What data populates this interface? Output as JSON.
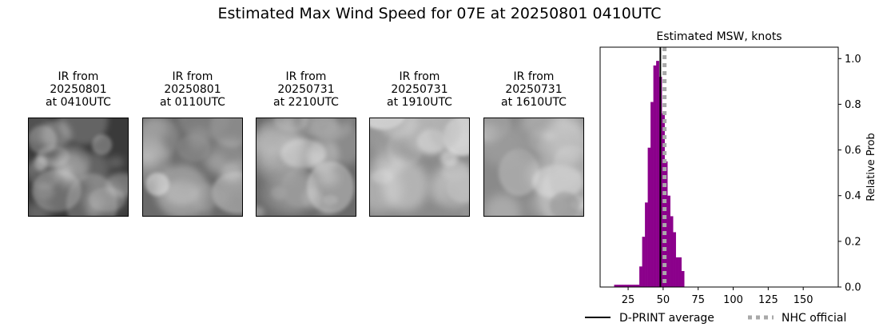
{
  "figure": {
    "suptitle": "Estimated Max Wind Speed for 07E at 20250801 0410UTC"
  },
  "ir_panels": [
    {
      "title": "IR from\n20250801\nat 0410UTC",
      "tone": "dark"
    },
    {
      "title": "IR from\n20250801\nat 0110UTC",
      "tone": "mid"
    },
    {
      "title": "IR from\n20250731\nat 2210UTC",
      "tone": "mid"
    },
    {
      "title": "IR from\n20250731\nat 1910UTC",
      "tone": "light"
    },
    {
      "title": "IR from\n20250731\nat 1610UTC",
      "tone": "light"
    }
  ],
  "chart_data": {
    "type": "bar",
    "title": "Estimated MSW, knots",
    "xlabel": "",
    "ylabel": "Relative Prob",
    "xlim": [
      5,
      175
    ],
    "ylim": [
      0,
      1.05
    ],
    "x_ticks": [
      25,
      50,
      75,
      100,
      125,
      150
    ],
    "y_ticks": [
      0.0,
      0.2,
      0.4,
      0.6,
      0.8,
      1.0
    ],
    "y_tick_labels": [
      "0.0",
      "0.2",
      "0.4",
      "0.6",
      "0.8",
      "1.0"
    ],
    "y_axis_side": "right",
    "bar_color": "#8b008b",
    "bin_width": 2,
    "bins": [
      {
        "x": 16,
        "y": 0.01
      },
      {
        "x": 18,
        "y": 0.01
      },
      {
        "x": 20,
        "y": 0.01
      },
      {
        "x": 22,
        "y": 0.01
      },
      {
        "x": 24,
        "y": 0.01
      },
      {
        "x": 26,
        "y": 0.01
      },
      {
        "x": 28,
        "y": 0.01
      },
      {
        "x": 30,
        "y": 0.01
      },
      {
        "x": 32,
        "y": 0.01
      },
      {
        "x": 34,
        "y": 0.09
      },
      {
        "x": 36,
        "y": 0.22
      },
      {
        "x": 38,
        "y": 0.37
      },
      {
        "x": 40,
        "y": 0.61
      },
      {
        "x": 42,
        "y": 0.81
      },
      {
        "x": 44,
        "y": 0.97
      },
      {
        "x": 46,
        "y": 0.99
      },
      {
        "x": 48,
        "y": 0.92
      },
      {
        "x": 50,
        "y": 0.76
      },
      {
        "x": 52,
        "y": 0.55
      },
      {
        "x": 54,
        "y": 0.4
      },
      {
        "x": 56,
        "y": 0.31
      },
      {
        "x": 58,
        "y": 0.24
      },
      {
        "x": 60,
        "y": 0.13
      },
      {
        "x": 62,
        "y": 0.13
      },
      {
        "x": 64,
        "y": 0.07
      }
    ],
    "dprint_average": 48,
    "nhc_official": 51,
    "legend": [
      {
        "label": "D-PRINT average",
        "style": "solid",
        "color": "#000000"
      },
      {
        "label": "NHC official",
        "style": "dotted",
        "color": "#a9a9a9"
      }
    ],
    "legend_placement": "bottom"
  }
}
